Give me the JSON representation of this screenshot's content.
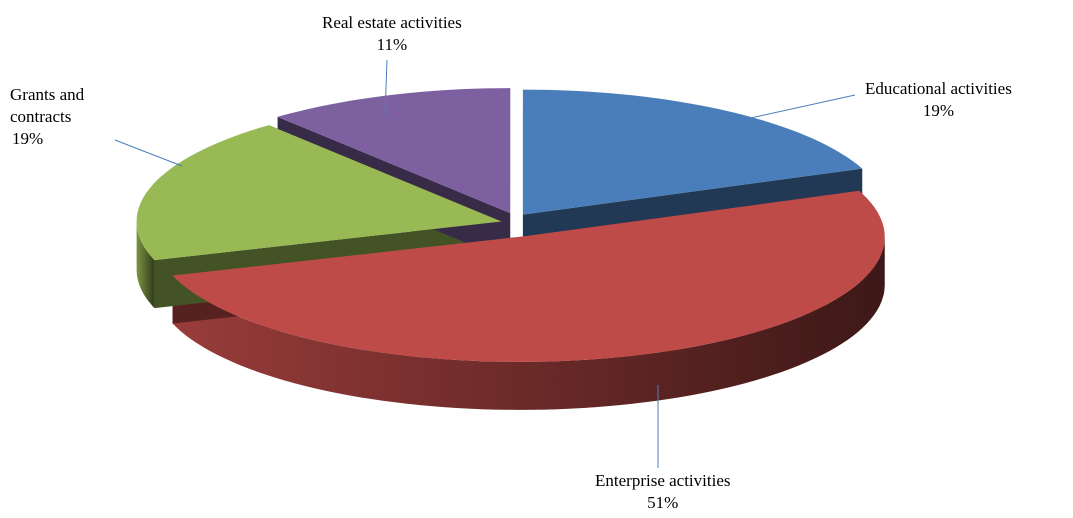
{
  "chart_data": {
    "type": "pie",
    "categories": [
      "Educational activities",
      "Enterprise activities",
      "Grants and contracts",
      "Real estate activities"
    ],
    "values": [
      19,
      51,
      19,
      11
    ],
    "value_labels": [
      "19%",
      "51%",
      "19%",
      "11%"
    ],
    "colors": [
      "#4a7ebb",
      "#be4b48",
      "#98b954",
      "#7d60a0"
    ]
  }
}
